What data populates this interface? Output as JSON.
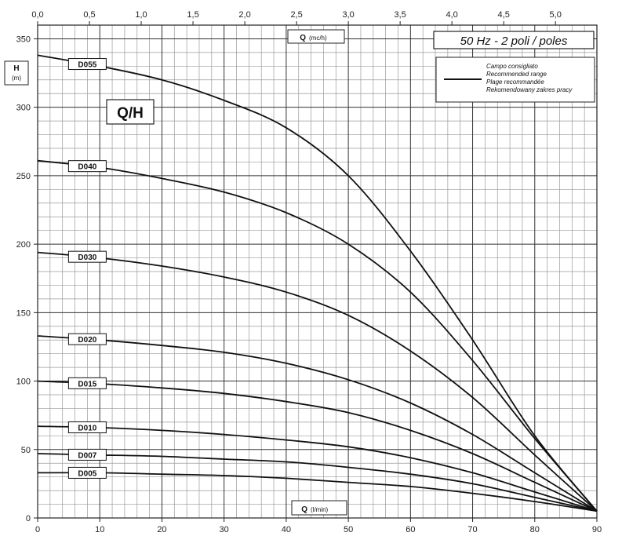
{
  "chart_data": {
    "type": "line",
    "title": "Q/H",
    "frequency_label": "50 Hz - 2 poli / poles",
    "bottom_axis": {
      "label_main": "Q",
      "label_unit": "(l/min)",
      "range": [
        0,
        90
      ],
      "ticks": [
        0,
        10,
        20,
        30,
        40,
        50,
        60,
        70,
        80,
        90
      ]
    },
    "top_axis": {
      "label_main": "Q",
      "label_unit": "(mc/h)",
      "range": [
        0,
        5.4
      ],
      "ticks": [
        "0,0",
        "0,5",
        "1,0",
        "1,5",
        "2,0",
        "2,5",
        "3,0",
        "3,5",
        "4,0",
        "4,5",
        "5,0"
      ]
    },
    "y_axis": {
      "label_main": "H",
      "label_unit": "(m)",
      "range": [
        0,
        360
      ],
      "ticks": [
        0,
        50,
        100,
        150,
        200,
        250,
        300,
        350
      ]
    },
    "grid": true,
    "legend": {
      "position": "top-right",
      "lines": [
        "Campo consigliato",
        "Recommended range",
        "Plage recommandée",
        "Rekomendowany zakres pracy"
      ]
    },
    "series": [
      {
        "name": "D055",
        "points": [
          [
            0,
            338
          ],
          [
            10,
            330
          ],
          [
            20,
            320
          ],
          [
            30,
            305
          ],
          [
            40,
            285
          ],
          [
            50,
            250
          ],
          [
            60,
            195
          ],
          [
            70,
            130
          ],
          [
            80,
            60
          ],
          [
            90,
            5
          ]
        ]
      },
      {
        "name": "D040",
        "points": [
          [
            0,
            261
          ],
          [
            10,
            256
          ],
          [
            20,
            248
          ],
          [
            30,
            238
          ],
          [
            40,
            223
          ],
          [
            50,
            200
          ],
          [
            60,
            165
          ],
          [
            70,
            115
          ],
          [
            80,
            58
          ],
          [
            90,
            5
          ]
        ]
      },
      {
        "name": "D030",
        "points": [
          [
            0,
            194
          ],
          [
            10,
            190
          ],
          [
            20,
            184
          ],
          [
            30,
            176
          ],
          [
            40,
            165
          ],
          [
            50,
            148
          ],
          [
            60,
            122
          ],
          [
            70,
            88
          ],
          [
            80,
            46
          ],
          [
            90,
            5
          ]
        ]
      },
      {
        "name": "D020",
        "points": [
          [
            0,
            133
          ],
          [
            10,
            130
          ],
          [
            20,
            126
          ],
          [
            30,
            121
          ],
          [
            40,
            113
          ],
          [
            50,
            101
          ],
          [
            60,
            84
          ],
          [
            70,
            61
          ],
          [
            80,
            33
          ],
          [
            90,
            5
          ]
        ]
      },
      {
        "name": "D015",
        "points": [
          [
            0,
            100
          ],
          [
            10,
            98
          ],
          [
            20,
            95
          ],
          [
            30,
            91
          ],
          [
            40,
            85
          ],
          [
            50,
            77
          ],
          [
            60,
            64
          ],
          [
            70,
            47
          ],
          [
            80,
            26
          ],
          [
            90,
            5
          ]
        ]
      },
      {
        "name": "D010",
        "points": [
          [
            0,
            67
          ],
          [
            10,
            66
          ],
          [
            20,
            64
          ],
          [
            30,
            61
          ],
          [
            40,
            57
          ],
          [
            50,
            52
          ],
          [
            60,
            44
          ],
          [
            70,
            33
          ],
          [
            80,
            19
          ],
          [
            90,
            5
          ]
        ]
      },
      {
        "name": "D007",
        "points": [
          [
            0,
            47
          ],
          [
            10,
            46
          ],
          [
            20,
            45
          ],
          [
            30,
            43
          ],
          [
            40,
            41
          ],
          [
            50,
            37
          ],
          [
            60,
            32
          ],
          [
            70,
            25
          ],
          [
            80,
            15
          ],
          [
            90,
            5
          ]
        ]
      },
      {
        "name": "D005",
        "points": [
          [
            0,
            33
          ],
          [
            10,
            33
          ],
          [
            20,
            32
          ],
          [
            30,
            31
          ],
          [
            40,
            29
          ],
          [
            50,
            26
          ],
          [
            60,
            23
          ],
          [
            70,
            18
          ],
          [
            80,
            12
          ],
          [
            90,
            5
          ]
        ]
      }
    ]
  }
}
